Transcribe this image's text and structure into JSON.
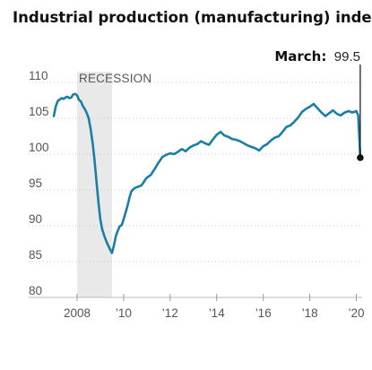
{
  "chart_data": {
    "type": "line",
    "title": "Industrial production (manufacturing) index",
    "xlabel": "",
    "ylabel": "",
    "ylim": [
      80,
      110
    ],
    "yticks": [
      "110",
      "105",
      "100",
      "95",
      "90",
      "85",
      "80"
    ],
    "xticks": [
      "2008",
      "’10",
      "’12",
      "’14",
      "’16",
      "’18",
      "’20"
    ],
    "grid": true,
    "recession": {
      "label": "RECESSION",
      "start": 2008.0,
      "end": 2009.5
    },
    "annotation": {
      "label": "March:",
      "value": "99.5"
    },
    "colors": {
      "line": "#1a7fa3",
      "recession": "#e9e9e9",
      "marker": "#111111"
    },
    "series": [
      {
        "x": [
          2007.0,
          2007.08,
          2007.17,
          2007.25,
          2007.33,
          2007.42,
          2007.5,
          2007.58,
          2007.67,
          2007.75,
          2007.83,
          2007.92,
          2008.0,
          2008.08,
          2008.17,
          2008.25,
          2008.33,
          2008.42,
          2008.5,
          2008.58,
          2008.67,
          2008.75,
          2008.83,
          2008.92,
          2009.0,
          2009.08,
          2009.17,
          2009.25,
          2009.33,
          2009.42,
          2009.5,
          2009.58,
          2009.67,
          2009.75,
          2009.83,
          2009.92,
          2010.0,
          2010.08,
          2010.17,
          2010.25,
          2010.33,
          2010.42,
          2010.5,
          2010.58,
          2010.67,
          2010.75,
          2010.83,
          2010.92,
          2011.0,
          2011.17,
          2011.33,
          2011.5,
          2011.67,
          2011.83,
          2012.0,
          2012.17,
          2012.33,
          2012.5,
          2012.67,
          2012.83,
          2013.0,
          2013.17,
          2013.33,
          2013.5,
          2013.67,
          2013.83,
          2014.0,
          2014.17,
          2014.33,
          2014.5,
          2014.67,
          2014.83,
          2015.0,
          2015.17,
          2015.33,
          2015.5,
          2015.67,
          2015.83,
          2016.0,
          2016.17,
          2016.33,
          2016.5,
          2016.67,
          2016.83,
          2017.0,
          2017.17,
          2017.33,
          2017.5,
          2017.67,
          2017.83,
          2018.0,
          2018.17,
          2018.33,
          2018.5,
          2018.67,
          2018.83,
          2019.0,
          2019.17,
          2019.33,
          2019.5,
          2019.67,
          2019.83,
          2020.0,
          2020.08,
          2020.17
        ],
        "values": [
          105.3,
          106.6,
          107.4,
          107.6,
          107.8,
          107.7,
          107.9,
          108.0,
          107.8,
          107.9,
          108.3,
          108.4,
          108.2,
          107.6,
          107.3,
          106.7,
          106.3,
          105.7,
          105.0,
          103.6,
          101.5,
          99.2,
          96.4,
          93.3,
          90.9,
          89.5,
          88.6,
          87.9,
          87.3,
          86.7,
          86.2,
          87.2,
          88.6,
          89.3,
          89.9,
          90.1,
          90.9,
          91.8,
          92.8,
          93.9,
          94.8,
          95.1,
          95.3,
          95.4,
          95.5,
          95.6,
          95.9,
          96.4,
          96.7,
          97.1,
          97.9,
          98.8,
          99.6,
          99.9,
          100.1,
          100.0,
          100.3,
          100.7,
          100.4,
          100.9,
          101.2,
          101.4,
          101.8,
          101.5,
          101.3,
          102.0,
          102.7,
          103.1,
          102.6,
          102.4,
          102.1,
          102.0,
          101.8,
          101.5,
          101.2,
          101.0,
          100.8,
          100.5,
          101.1,
          101.4,
          101.9,
          102.3,
          102.5,
          103.1,
          103.8,
          104.0,
          104.5,
          105.1,
          105.9,
          106.3,
          106.6,
          107.0,
          106.4,
          105.8,
          105.3,
          105.7,
          106.1,
          105.6,
          105.4,
          105.8,
          106.0,
          105.8,
          106.0,
          105.4,
          99.5
        ]
      }
    ]
  }
}
